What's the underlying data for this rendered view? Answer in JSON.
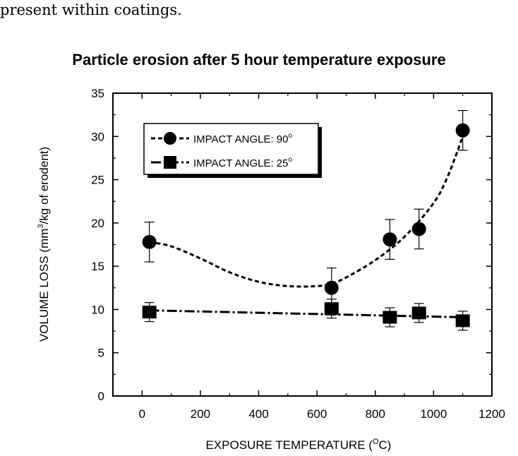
{
  "intro_text": "present within coatings.",
  "chart_data": {
    "type": "line",
    "title": "Particle erosion after 5 hour temperature exposure",
    "xlabel_main": "EXPOSURE TEMPERATURE (",
    "xlabel_sup": "O",
    "xlabel_end": "C)",
    "ylabel_main": "VOLUME LOSS (mm",
    "ylabel_sup": "3",
    "ylabel_end": "/kg of erodent)",
    "xlim": [
      -100,
      1200
    ],
    "ylim": [
      0,
      35
    ],
    "x_ticks": [
      0,
      200,
      400,
      600,
      800,
      1000,
      1200
    ],
    "y_ticks": [
      0,
      5,
      10,
      15,
      20,
      25,
      30,
      35
    ],
    "legend_position": "top-left",
    "series": [
      {
        "name": "IMPACT ANGLE: 90",
        "name_sup": "o",
        "marker": "circle",
        "line_style": "dashed",
        "x": [
          25,
          650,
          850,
          950,
          1100
        ],
        "y": [
          17.8,
          12.5,
          18.1,
          19.3,
          30.7
        ],
        "err": [
          2.3,
          2.3,
          2.3,
          2.3,
          2.3
        ],
        "trend_x": [
          25,
          100,
          200,
          300,
          400,
          500,
          600,
          650,
          700,
          800,
          900,
          1000,
          1050,
          1100
        ],
        "trend_y": [
          17.8,
          17.3,
          15.9,
          14.3,
          13.2,
          12.7,
          12.7,
          13.0,
          13.7,
          15.7,
          18.4,
          22.3,
          25.5,
          30.0
        ]
      },
      {
        "name": "IMPACT ANGLE: 25",
        "name_sup": "o",
        "marker": "square",
        "line_style": "dash-dot",
        "x": [
          25,
          650,
          850,
          950,
          1100
        ],
        "y": [
          9.7,
          10.1,
          9.1,
          9.6,
          8.7
        ],
        "err": [
          1.1,
          1.1,
          1.1,
          1.1,
          1.1
        ],
        "trend_x": [
          25,
          1100
        ],
        "trend_y": [
          9.9,
          9.1
        ]
      }
    ]
  }
}
